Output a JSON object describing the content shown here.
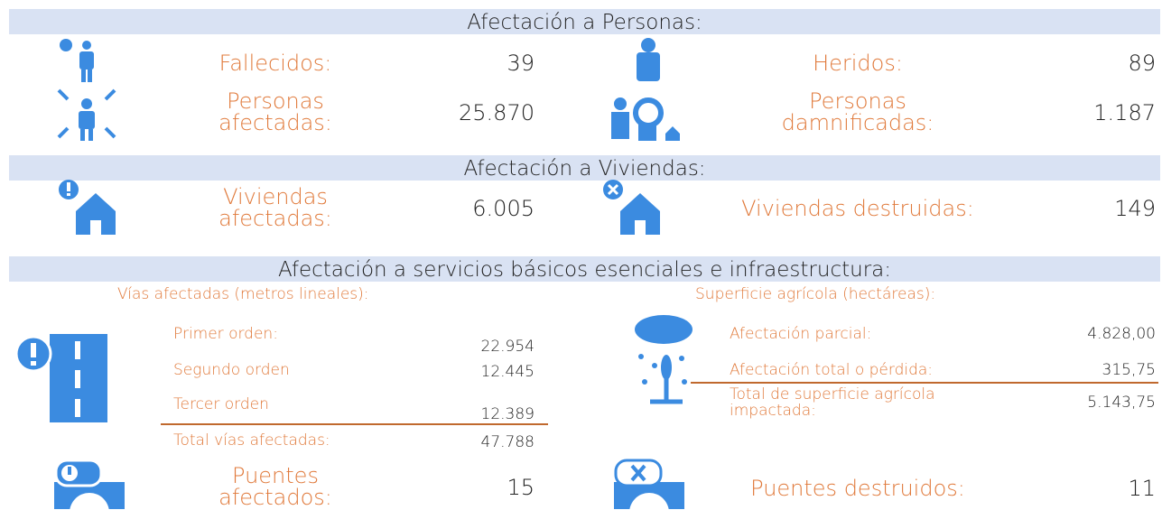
{
  "sections": [
    {
      "title": "Afectación a Personas:",
      "items": [
        {
          "label": "Fallecidos:",
          "value": "39"
        },
        {
          "label": "Heridos:",
          "value": "89"
        },
        {
          "label": "Personas afectadas:",
          "value": "25.870"
        },
        {
          "label": "Personas damnificadas:",
          "value": "1.187"
        }
      ]
    },
    {
      "title": "Afectación a Viviendas:",
      "items": [
        {
          "label": "Viviendas afectadas:",
          "value": "6.005"
        },
        {
          "label": "Viviendas destruidas:",
          "value": "149"
        }
      ]
    },
    {
      "title": "Afectación a servicios básicos esenciales e infraestructura:"
    }
  ],
  "vias": {
    "title": "Vías afectadas (metros lineales):",
    "rows": [
      {
        "label": "Primer orden:",
        "value": "22.954"
      },
      {
        "label": "Segundo orden",
        "value": "12.445"
      },
      {
        "label": "Tercer orden",
        "value": "12.389"
      }
    ],
    "total": {
      "label": "Total vías afectadas:",
      "value": "47.788"
    }
  },
  "agricola": {
    "title": "Superficie agrícola (hectáreas):",
    "rows": [
      {
        "label": "Afectación parcial:",
        "value": "4.828,00"
      },
      {
        "label": "Afectación total o pérdida:",
        "value": "315,75"
      }
    ],
    "total": {
      "label": "Total de superficie agrícola impactada:",
      "value": "5.143,75"
    }
  },
  "puentes": [
    {
      "label": "Puentes afectados:",
      "value": "15"
    },
    {
      "label": "Puentes destruidos:",
      "value": "11"
    }
  ]
}
